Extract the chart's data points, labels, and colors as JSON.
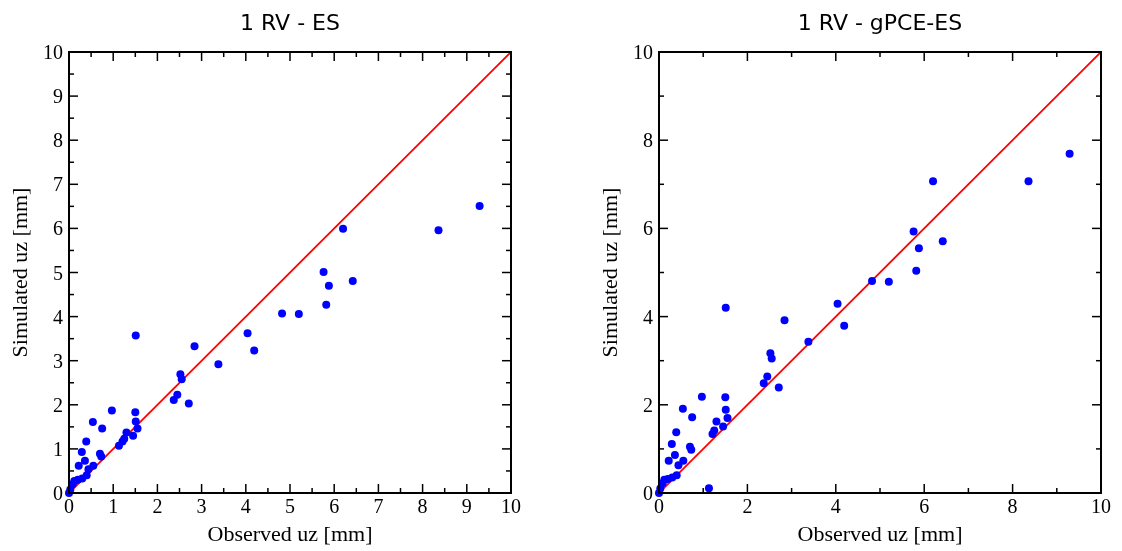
{
  "chart_data": [
    {
      "type": "scatter",
      "title": "1 RV - ES",
      "xlabel": "Observed uz [mm]",
      "ylabel": "Simulated uz [mm]",
      "xlim": [
        0,
        10
      ],
      "ylim": [
        0,
        10
      ],
      "xticks": [
        0,
        {
          "value": 0.5,
          "label": null
        },
        1,
        {
          "value": 1.5,
          "label": null
        },
        2,
        {
          "value": 2.5,
          "label": null
        },
        3,
        {
          "value": 3.5,
          "label": null
        },
        4,
        {
          "value": 4.5,
          "label": null
        },
        5,
        {
          "value": 5.5,
          "label": null
        },
        6,
        {
          "value": 6.5,
          "label": null
        },
        7,
        {
          "value": 7.5,
          "label": null
        },
        8,
        {
          "value": 8.5,
          "label": null
        },
        9,
        {
          "value": 9.5,
          "label": null
        },
        10
      ],
      "yticks": [
        0,
        {
          "value": 0.5,
          "label": null
        },
        1,
        {
          "value": 1.5,
          "label": null
        },
        2,
        {
          "value": 2.5,
          "label": null
        },
        3,
        {
          "value": 3.5,
          "label": null
        },
        4,
        {
          "value": 4.5,
          "label": null
        },
        5,
        {
          "value": 5.5,
          "label": null
        },
        6,
        {
          "value": 6.5,
          "label": null
        },
        7,
        {
          "value": 7.5,
          "label": null
        },
        8,
        {
          "value": 8.5,
          "label": null
        },
        9,
        {
          "value": 9.5,
          "label": null
        },
        10
      ],
      "grid": false,
      "marker": "circle",
      "series": [
        {
          "color": "#0000ff",
          "x": [
            9.29,
            8.36,
            6.2,
            5.76,
            5.88,
            6.42,
            5.82,
            4.82,
            5.2,
            4.04,
            4.19,
            3.38,
            2.84,
            2.52,
            2.55,
            2.45,
            2.37,
            2.71,
            1.51,
            0.97,
            1.5,
            1.51,
            1.55,
            0.54,
            0.75,
            1.3,
            1.25,
            1.21,
            1.13,
            1.45,
            0.39,
            0.29,
            0.7,
            0.73,
            0.36,
            0.22,
            0.44,
            0.55,
            0.4,
            0.3,
            0.2,
            0.12,
            0.08,
            0.03,
            0
          ],
          "values": [
            6.51,
            5.96,
            5.99,
            5.01,
            4.7,
            4.81,
            4.27,
            4.07,
            4.06,
            3.62,
            3.23,
            2.92,
            3.33,
            2.69,
            2.58,
            2.23,
            2.11,
            2.03,
            3.57,
            1.87,
            1.83,
            1.62,
            1.46,
            1.61,
            1.46,
            1.37,
            1.23,
            1.17,
            1.07,
            1.3,
            1.17,
            0.93,
            0.89,
            0.83,
            0.73,
            0.62,
            0.54,
            0.62,
            0.4,
            0.33,
            0.3,
            0.27,
            0.2,
            0.08,
            0
          ]
        },
        {
          "type": "line",
          "color": "#ff0000",
          "marker": "none",
          "line_style": "solid",
          "x": [
            0,
            10
          ],
          "values": [
            0,
            10
          ]
        }
      ]
    },
    {
      "type": "scatter",
      "title": "1 RV - gPCE-ES",
      "xlabel": "Observed uz [mm]",
      "ylabel": "Simulated uz [mm]",
      "xlim": [
        0,
        10
      ],
      "ylim": [
        0,
        10
      ],
      "xticks": [
        0,
        {
          "value": 1,
          "label": null
        },
        2,
        {
          "value": 3,
          "label": null
        },
        4,
        {
          "value": 5,
          "label": null
        },
        6,
        {
          "value": 7,
          "label": null
        },
        8,
        {
          "value": 9,
          "label": null
        },
        10
      ],
      "yticks": [
        0,
        {
          "value": 1,
          "label": null
        },
        2,
        {
          "value": 3,
          "label": null
        },
        4,
        {
          "value": 5,
          "label": null
        },
        6,
        {
          "value": 7,
          "label": null
        },
        8,
        {
          "value": 9,
          "label": null
        },
        10
      ],
      "grid": false,
      "marker": "circle",
      "series": [
        {
          "color": "#0000ff",
          "x": [
            9.29,
            8.36,
            6.2,
            5.76,
            5.88,
            6.42,
            5.82,
            4.82,
            5.2,
            4.04,
            4.19,
            3.38,
            2.84,
            2.52,
            2.55,
            2.45,
            2.37,
            2.71,
            1.51,
            0.97,
            1.5,
            1.51,
            1.55,
            0.54,
            0.75,
            1.3,
            1.25,
            1.21,
            1.13,
            1.45,
            0.39,
            0.29,
            0.7,
            0.73,
            0.36,
            0.22,
            0.44,
            0.55,
            0.4,
            0.3,
            0.2,
            0.12,
            0.08,
            0.03,
            0
          ],
          "values": [
            7.69,
            7.07,
            7.07,
            5.93,
            5.55,
            5.71,
            5.04,
            4.81,
            4.79,
            4.29,
            3.79,
            3.43,
            3.92,
            3.17,
            3.05,
            2.64,
            2.49,
            2.39,
            4.2,
            2.18,
            2.17,
            1.89,
            1.7,
            1.91,
            1.72,
            1.62,
            1.42,
            1.34,
            0.11,
            1.51,
            1.38,
            1.11,
            1.05,
            0.98,
            0.86,
            0.73,
            0.63,
            0.73,
            0.4,
            0.35,
            0.32,
            0.3,
            0.22,
            0.1,
            0
          ]
        },
        {
          "type": "line",
          "color": "#ff0000",
          "marker": "none",
          "line_style": "solid",
          "x": [
            0,
            10
          ],
          "values": [
            0,
            10
          ]
        }
      ]
    }
  ]
}
